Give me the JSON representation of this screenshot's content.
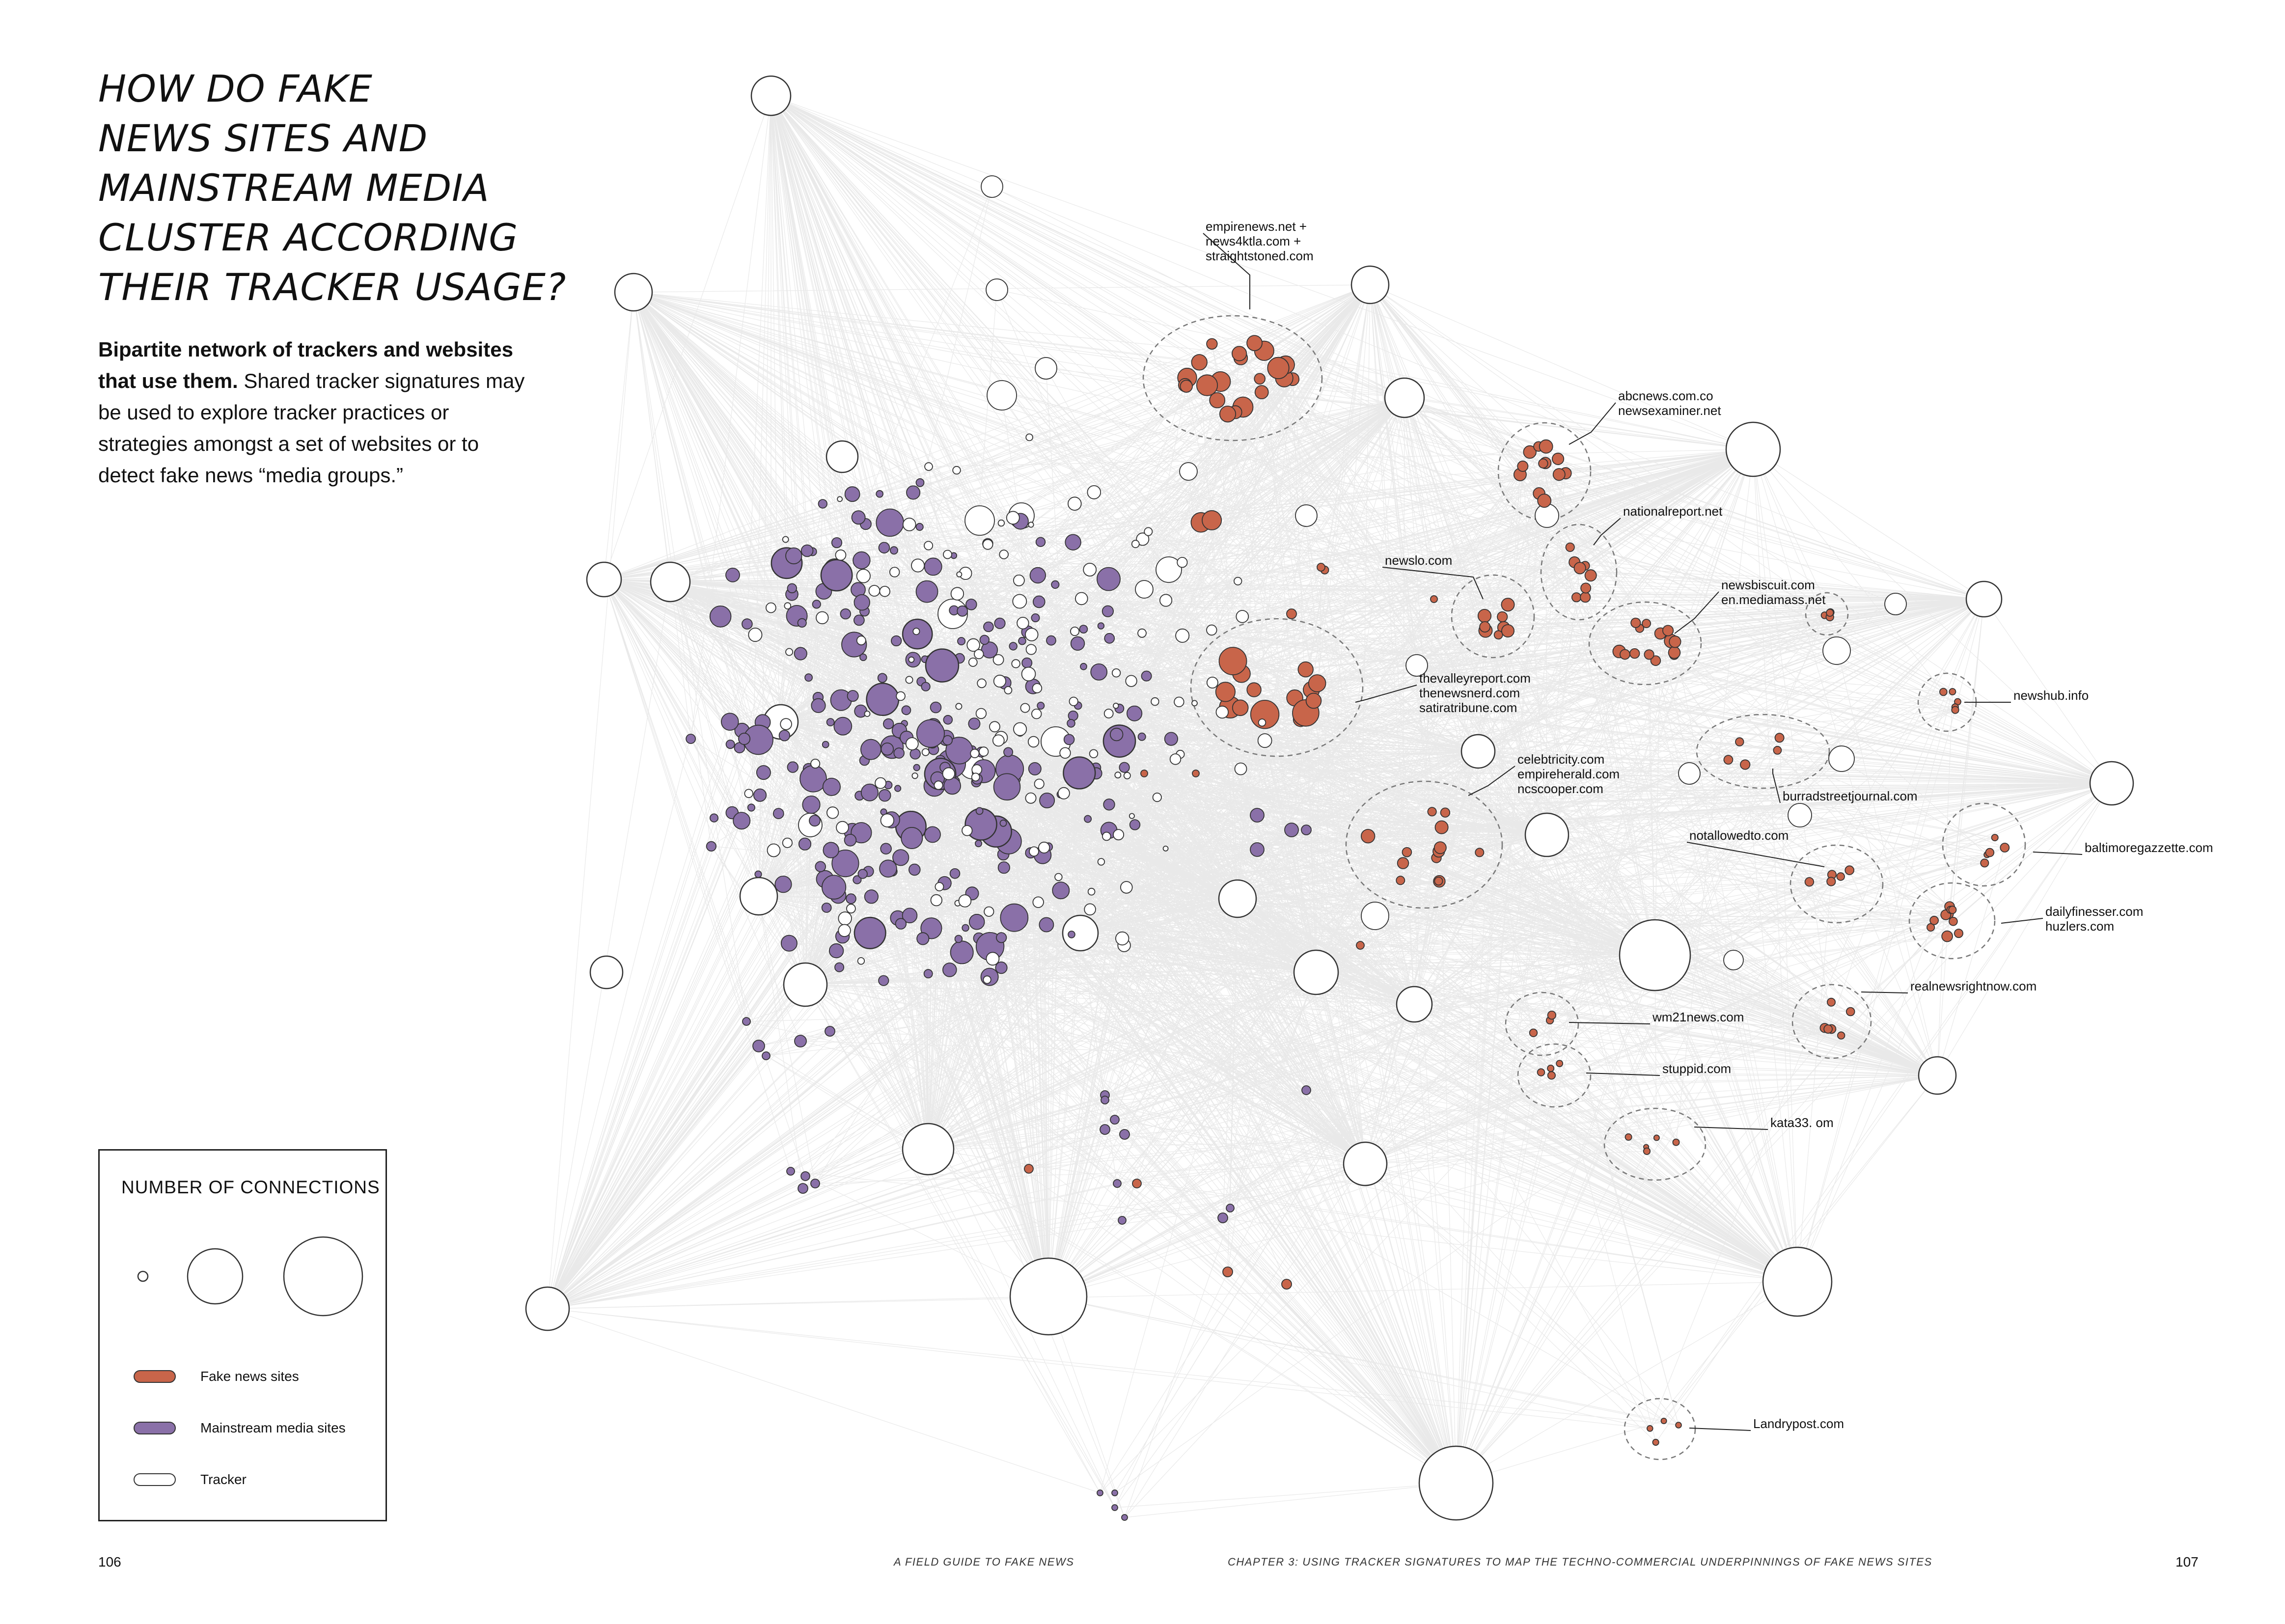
{
  "title_lines": [
    "How do fake",
    "news sites and",
    "mainstream media",
    "cluster according",
    "their tracker usage?"
  ],
  "description": {
    "lead": "Bipartite network of trackers and websites that use them.",
    "body": "Shared tracker signatures may be used to explore tracker practices or strategies amongst a set of websites or to detect fake news “media groups.”"
  },
  "legend": {
    "title": "NUMBER OF CONNECTIONS",
    "items": [
      {
        "label": "Fake news sites",
        "color": "#c8654a"
      },
      {
        "label": "Mainstream media sites",
        "color": "#8a70a8"
      },
      {
        "label": "Tracker",
        "color": "#ffffff"
      }
    ]
  },
  "colors": {
    "fake": "#c8654a",
    "mainstream": "#8a70a8",
    "tracker": "#ffffff",
    "edge": "#e4e4e4",
    "stroke": "#333333"
  },
  "cluster_labels": [
    {
      "lines": [
        "empirenews.net +",
        "news4ktla.com +",
        "straightstoned.com"
      ]
    },
    {
      "lines": [
        "abcnews.com.co",
        "newsexaminer.net"
      ]
    },
    {
      "lines": [
        "nationalreport.net"
      ]
    },
    {
      "lines": [
        "newslo.com"
      ]
    },
    {
      "lines": [
        "newsbiscuit.com",
        "en.mediamass.net"
      ]
    },
    {
      "lines": [
        "thevalleyreport.com",
        "thenewsnerd.com",
        "satiratribune.com"
      ]
    },
    {
      "lines": [
        "newshub.info"
      ]
    },
    {
      "lines": [
        "celebtricity.com",
        "empireherald.com",
        "ncscooper.com"
      ]
    },
    {
      "lines": [
        "burradstreetjournal.com"
      ]
    },
    {
      "lines": [
        "notallowedto.com"
      ]
    },
    {
      "lines": [
        "baltimoregazzette.com"
      ]
    },
    {
      "lines": [
        "dailyfinesser.com",
        "huzlers.com"
      ]
    },
    {
      "lines": [
        "realnewsrightnow.com"
      ]
    },
    {
      "lines": [
        "wm21news.com"
      ]
    },
    {
      "lines": [
        "stuppid.com"
      ]
    },
    {
      "lines": [
        "kata33. om"
      ]
    },
    {
      "lines": [
        "Landrypost.com"
      ]
    }
  ],
  "footer": {
    "page_left": "106",
    "page_right": "107",
    "runner_left": "A FIELD GUIDE TO FAKE NEWS",
    "runner_right": "CHAPTER 3: USING TRACKER SIGNATURES TO MAP THE TECHNO-COMMERCIAL UNDERPINNINGS OF FAKE NEWS SITES"
  }
}
